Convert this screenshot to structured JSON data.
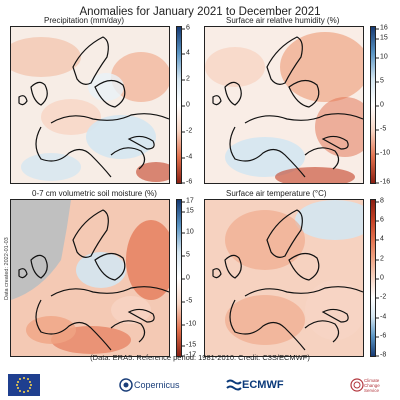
{
  "title": "Anomalies for January 2021 to December 2021",
  "panels": [
    {
      "id": "precipitation",
      "label": "Precipitation (mm/day)",
      "ticks": [
        "6",
        "4",
        "2",
        "0",
        "-2",
        "-4",
        "-6"
      ]
    },
    {
      "id": "humidity",
      "label": "Surface air relative humidity (%)",
      "ticks": [
        "16",
        "15",
        "10",
        "5",
        "0",
        "-5",
        "-10",
        "-16"
      ]
    },
    {
      "id": "soil_moisture",
      "label": "0-7 cm volumetric soil moisture (%)",
      "ticks": [
        "17",
        "15",
        "10",
        "5",
        "0",
        "-5",
        "-10",
        "-15",
        "-17"
      ]
    },
    {
      "id": "temperature",
      "label": "Surface air temperature (°C)",
      "ticks": [
        "8",
        "6",
        "4",
        "2",
        "0",
        "-2",
        "-4",
        "-6",
        "-8"
      ]
    }
  ],
  "data_created": "Data created: 2022-01-03",
  "footer": "(Data: ERA5.  Reference period: 1981-2010.  Credit: C3S/ECMWF)",
  "logos": {
    "copernicus": "Copernicus",
    "ecmwf": "ECMWF",
    "c3s": "Climate Change Service"
  },
  "colors": {
    "positive_scale": [
      "#f6fbfd",
      "#d4e6f1",
      "#9cc4de",
      "#5a95c4",
      "#2c5d9e",
      "#163a73"
    ],
    "negative_scale": [
      "#fdf6f2",
      "#f7d5c4",
      "#f0a585",
      "#e2704d",
      "#c33f24",
      "#8a1f12"
    ],
    "temperature_scale_hot": [
      "#fdf6f2",
      "#f7d5c4",
      "#f0a585",
      "#e2704d",
      "#c33f24",
      "#8a1f12"
    ],
    "no_data": "#c0c0c0"
  }
}
